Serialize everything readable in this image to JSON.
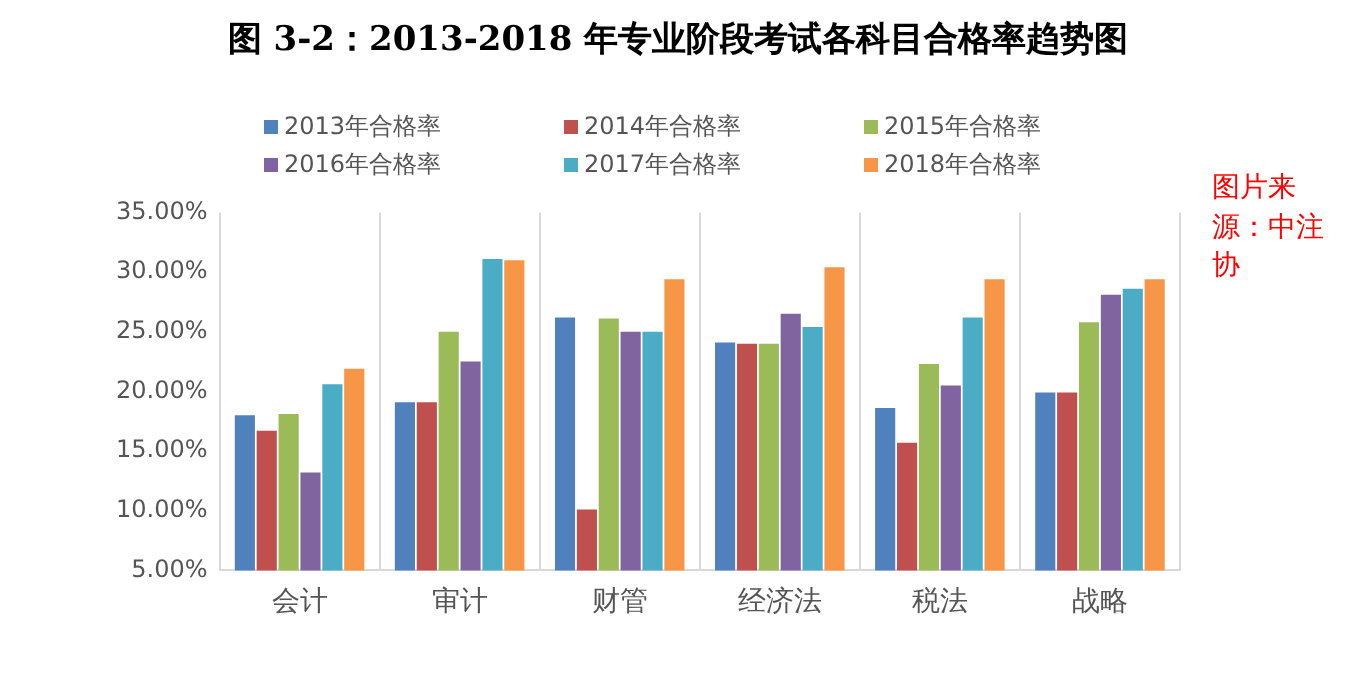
{
  "chart_data": {
    "type": "bar",
    "title": "图 3-2：2013-2018 年专业阶段考试各科目合格率趋势图",
    "categories": [
      "会计",
      "审计",
      "财管",
      "经济法",
      "税法",
      "战略"
    ],
    "series": [
      {
        "name": "2013年合格率",
        "color": "#4f81bd",
        "values": [
          18.0,
          19.1,
          26.2,
          24.1,
          18.6,
          19.9
        ]
      },
      {
        "name": "2014年合格率",
        "color": "#c0504d",
        "values": [
          16.7,
          19.1,
          10.1,
          24.0,
          15.7,
          19.9
        ]
      },
      {
        "name": "2015年合格率",
        "color": "#9bbb59",
        "values": [
          18.1,
          25.0,
          26.1,
          24.0,
          22.3,
          25.8
        ]
      },
      {
        "name": "2016年合格率",
        "color": "#8064a2",
        "values": [
          13.2,
          22.5,
          25.0,
          26.5,
          20.5,
          28.1
        ]
      },
      {
        "name": "2017年合格率",
        "color": "#4bacc6",
        "values": [
          20.6,
          31.1,
          25.0,
          25.4,
          26.2,
          28.6
        ]
      },
      {
        "name": "2018年合格率",
        "color": "#f79646",
        "values": [
          21.9,
          31.0,
          29.4,
          30.4,
          29.4,
          29.4
        ]
      }
    ],
    "ylim": [
      5,
      35
    ],
    "yticks": [
      {
        "value": 5,
        "label": "5.00%"
      },
      {
        "value": 10,
        "label": "10.00%"
      },
      {
        "value": 15,
        "label": "15.00%"
      },
      {
        "value": 20,
        "label": "20.00%"
      },
      {
        "value": 25,
        "label": "25.00%"
      },
      {
        "value": 30,
        "label": "30.00%"
      },
      {
        "value": 35,
        "label": "35.00%"
      }
    ],
    "grid": "x",
    "legend": "top",
    "annotations": [
      "图片来源：中注协"
    ]
  }
}
